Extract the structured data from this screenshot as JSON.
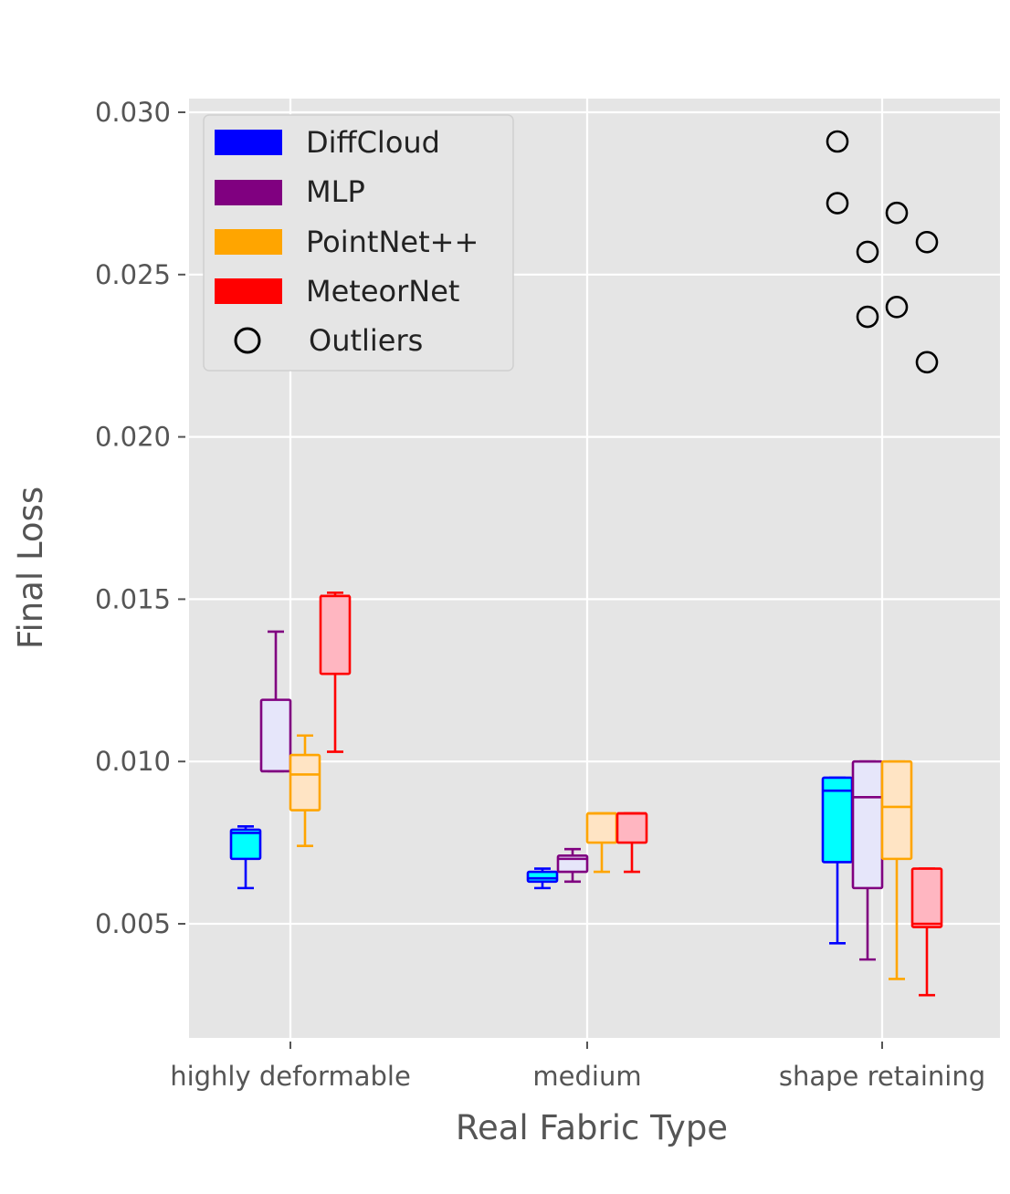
{
  "chart_data": {
    "type": "boxplot",
    "title": "",
    "xlabel": "Real Fabric Type",
    "ylabel": "Final Loss",
    "categories": [
      "highly deformable",
      "medium",
      "shape retaining"
    ],
    "ylim": [
      0.0016,
      0.0305
    ],
    "yticks": [
      0.005,
      0.01,
      0.015,
      0.02,
      0.025,
      0.03
    ],
    "ytick_labels": [
      "0.005",
      "0.010",
      "0.015",
      "0.020",
      "0.025",
      "0.030"
    ],
    "grid": true,
    "legend_position": "top-left",
    "legend": [
      {
        "label": "DiffCloud",
        "kind": "patch",
        "color": "#0000ff"
      },
      {
        "label": "MLP",
        "kind": "patch",
        "color": "#800080"
      },
      {
        "label": "PointNet++",
        "kind": "patch",
        "color": "#ffa500"
      },
      {
        "label": "MeteorNet",
        "kind": "patch",
        "color": "#ff0000"
      },
      {
        "label": "Outliers",
        "kind": "circle",
        "color": "#000000"
      }
    ],
    "series": [
      {
        "name": "DiffCloud",
        "edge": "#0000ff",
        "fill": "#00ffff",
        "boxes": [
          {
            "whislo": 0.0061,
            "q1": 0.007,
            "med": 0.0078,
            "q3": 0.0079,
            "whishi": 0.008
          },
          {
            "whislo": 0.0061,
            "q1": 0.0063,
            "med": 0.0064,
            "q3": 0.0066,
            "whishi": 0.0067
          },
          {
            "whislo": 0.0044,
            "q1": 0.0069,
            "med": 0.0091,
            "q3": 0.0095,
            "whishi": 0.0095
          }
        ]
      },
      {
        "name": "MLP",
        "edge": "#800080",
        "fill": "#e6e6fa",
        "boxes": [
          {
            "whislo": 0.0097,
            "q1": 0.0097,
            "med": 0.0097,
            "q3": 0.0119,
            "whishi": 0.014
          },
          {
            "whislo": 0.0063,
            "q1": 0.0066,
            "med": 0.007,
            "q3": 0.0071,
            "whishi": 0.0073
          },
          {
            "whislo": 0.0039,
            "q1": 0.0061,
            "med": 0.0089,
            "q3": 0.01,
            "whishi": 0.01
          }
        ]
      },
      {
        "name": "PointNet++",
        "edge": "#ffa500",
        "fill": "#ffe4c4",
        "boxes": [
          {
            "whislo": 0.0074,
            "q1": 0.0085,
            "med": 0.0096,
            "q3": 0.0102,
            "whishi": 0.0108
          },
          {
            "whislo": 0.0066,
            "q1": 0.0075,
            "med": 0.0084,
            "q3": 0.0084,
            "whishi": 0.0084
          },
          {
            "whislo": 0.0033,
            "q1": 0.007,
            "med": 0.0086,
            "q3": 0.01,
            "whishi": 0.01
          }
        ]
      },
      {
        "name": "MeteorNet",
        "edge": "#ff0000",
        "fill": "#ffb6c1",
        "boxes": [
          {
            "whislo": 0.0103,
            "q1": 0.0127,
            "med": 0.0151,
            "q3": 0.0151,
            "whishi": 0.0152
          },
          {
            "whislo": 0.0066,
            "q1": 0.0075,
            "med": 0.0084,
            "q3": 0.0084,
            "whishi": 0.0084
          },
          {
            "whislo": 0.0028,
            "q1": 0.0049,
            "med": 0.005,
            "q3": 0.0067,
            "whishi": 0.0067
          }
        ]
      }
    ],
    "outliers": [
      {
        "category": "shape retaining",
        "series": "DiffCloud",
        "values": [
          0.0291,
          0.0272
        ]
      },
      {
        "category": "shape retaining",
        "series": "MLP",
        "values": [
          0.0257,
          0.0237
        ]
      },
      {
        "category": "shape retaining",
        "series": "PointNet++",
        "values": [
          0.0269,
          0.024
        ]
      },
      {
        "category": "shape retaining",
        "series": "MeteorNet",
        "values": [
          0.026,
          0.0223
        ]
      }
    ]
  }
}
